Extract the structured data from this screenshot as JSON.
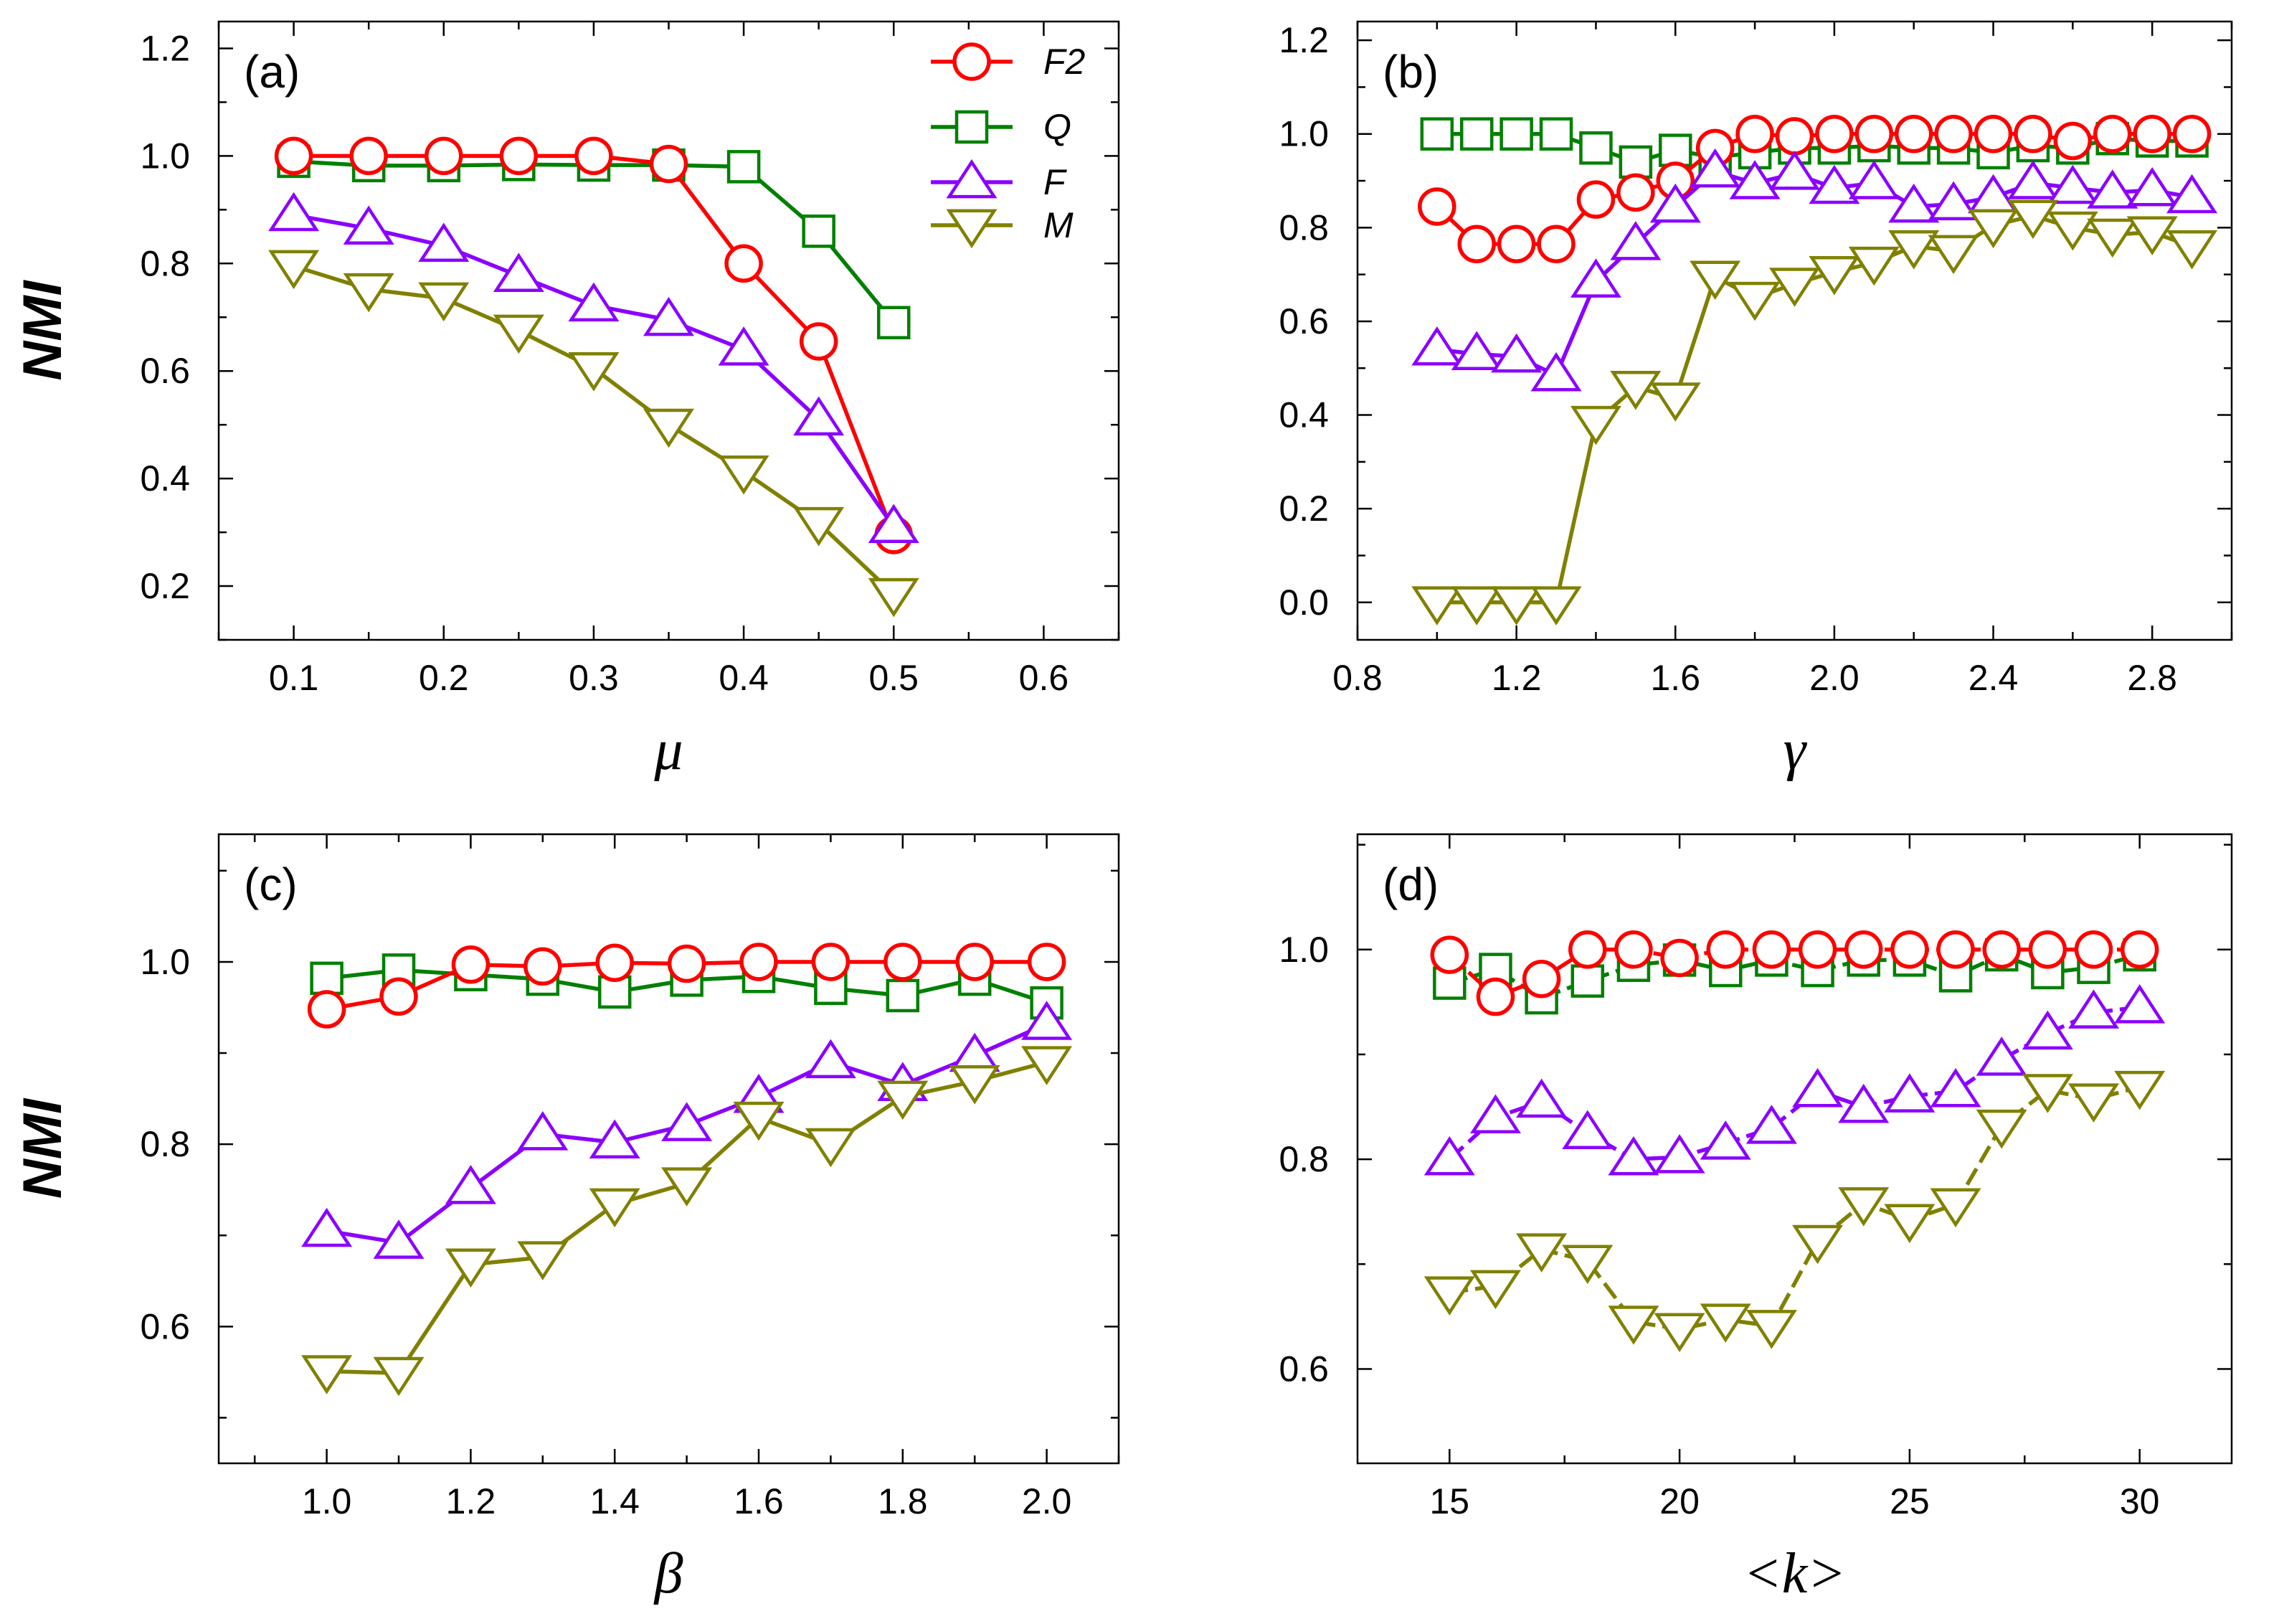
{
  "colors": {
    "F2": "#ff0000",
    "Q": "#008000",
    "F": "#8b00ff",
    "M": "#808000"
  },
  "legend": [
    {
      "key": "F2",
      "label": "F2"
    },
    {
      "key": "Q",
      "label": "Q"
    },
    {
      "key": "F",
      "label": "F"
    },
    {
      "key": "M",
      "label": "M"
    }
  ],
  "chart_data": [
    {
      "type": "line",
      "panel_label": "(a)",
      "xlabel": "μ",
      "ylabel": "NMI",
      "xlim": [
        0.05,
        0.65
      ],
      "ylim": [
        0.1,
        1.25
      ],
      "xticks": [
        0.1,
        0.2,
        0.3,
        0.4,
        0.5,
        0.6
      ],
      "xticklabels": [
        "0.1",
        "0.2",
        "0.3",
        "0.4",
        "0.5",
        "0.6"
      ],
      "yticks": [
        0.2,
        0.4,
        0.6,
        0.8,
        1.0,
        1.2
      ],
      "yticklabels": [
        "0.2",
        "0.4",
        "0.6",
        "0.8",
        "1.0",
        "1.2"
      ],
      "dashed": false,
      "x": [
        0.1,
        0.15,
        0.2,
        0.25,
        0.3,
        0.35,
        0.4,
        0.45,
        0.5
      ],
      "series": [
        {
          "name": "F2",
          "values": [
            1.0,
            1.0,
            1.0,
            1.0,
            1.0,
            0.985,
            0.8,
            0.655,
            0.295
          ]
        },
        {
          "name": "Q",
          "values": [
            0.99,
            0.982,
            0.982,
            0.984,
            0.983,
            0.983,
            0.98,
            0.86,
            0.69
          ]
        },
        {
          "name": "F",
          "values": [
            0.89,
            0.865,
            0.833,
            0.777,
            0.722,
            0.695,
            0.64,
            0.51,
            0.31
          ]
        },
        {
          "name": "M",
          "values": [
            0.795,
            0.752,
            0.735,
            0.675,
            0.605,
            0.5,
            0.413,
            0.317,
            0.185
          ]
        }
      ]
    },
    {
      "type": "line",
      "panel_label": "(b)",
      "xlabel": "γ",
      "ylabel": "",
      "xlim": [
        0.8,
        3.0
      ],
      "ylim": [
        -0.08,
        1.24
      ],
      "xticks": [
        0.8,
        1.2,
        1.6,
        2.0,
        2.4,
        2.8
      ],
      "xticklabels": [
        "0.8",
        "1.2",
        "1.6",
        "2.0",
        "2.4",
        "2.8"
      ],
      "yticks": [
        0.0,
        0.2,
        0.4,
        0.6,
        0.8,
        1.0,
        1.2
      ],
      "yticklabels": [
        "0.0",
        "0.2",
        "0.4",
        "0.6",
        "0.8",
        "1.0",
        "1.2"
      ],
      "dashed": false,
      "x": [
        1.0,
        1.1,
        1.2,
        1.3,
        1.4,
        1.5,
        1.6,
        1.7,
        1.8,
        1.9,
        2.0,
        2.1,
        2.2,
        2.3,
        2.4,
        2.5,
        2.6,
        2.7,
        2.8,
        2.9
      ],
      "series": [
        {
          "name": "F2",
          "values": [
            0.845,
            0.765,
            0.765,
            0.765,
            0.86,
            0.875,
            0.9,
            0.97,
            1.0,
            0.995,
            1.0,
            1.0,
            1.0,
            1.0,
            1.0,
            1.0,
            0.985,
            1.0,
            1.0,
            1.0
          ]
        },
        {
          "name": "Q",
          "values": [
            1.0,
            1.0,
            1.0,
            1.0,
            0.97,
            0.94,
            0.965,
            0.95,
            0.96,
            0.97,
            0.97,
            0.975,
            0.97,
            0.97,
            0.96,
            0.975,
            0.97,
            0.99,
            0.985,
            0.985
          ]
        },
        {
          "name": "F",
          "values": [
            0.54,
            0.53,
            0.525,
            0.485,
            0.685,
            0.765,
            0.845,
            0.92,
            0.895,
            0.915,
            0.885,
            0.895,
            0.845,
            0.85,
            0.865,
            0.895,
            0.885,
            0.875,
            0.88,
            0.865
          ]
        },
        {
          "name": "M",
          "values": [
            0.0,
            0.0,
            0.0,
            0.0,
            0.385,
            0.46,
            0.435,
            0.695,
            0.65,
            0.68,
            0.705,
            0.725,
            0.76,
            0.75,
            0.805,
            0.825,
            0.8,
            0.785,
            0.79,
            0.76
          ]
        }
      ]
    },
    {
      "type": "line",
      "panel_label": "(c)",
      "xlabel": "β",
      "ylabel": "NMI",
      "xlim": [
        0.85,
        2.1
      ],
      "ylim": [
        0.45,
        1.14
      ],
      "xticks": [
        1.0,
        1.2,
        1.4,
        1.6,
        1.8,
        2.0
      ],
      "xticklabels": [
        "1.0",
        "1.2",
        "1.4",
        "1.6",
        "1.8",
        "2.0"
      ],
      "yticks": [
        0.6,
        0.8,
        1.0
      ],
      "yticklabels": [
        "0.6",
        "0.8",
        "1.0"
      ],
      "dashed": false,
      "x": [
        1.0,
        1.1,
        1.2,
        1.3,
        1.4,
        1.5,
        1.6,
        1.7,
        1.8,
        1.9,
        2.0
      ],
      "series": [
        {
          "name": "F2",
          "values": [
            0.948,
            0.962,
            0.997,
            0.995,
            0.999,
            0.998,
            1.0,
            1.0,
            1.0,
            1.0,
            1.0
          ]
        },
        {
          "name": "Q",
          "values": [
            0.982,
            0.991,
            0.986,
            0.981,
            0.967,
            0.98,
            0.984,
            0.971,
            0.963,
            0.981,
            0.955
          ]
        },
        {
          "name": "F",
          "values": [
            0.705,
            0.692,
            0.752,
            0.811,
            0.802,
            0.821,
            0.852,
            0.89,
            0.865,
            0.897,
            0.932
          ]
        },
        {
          "name": "M",
          "values": [
            0.551,
            0.549,
            0.668,
            0.676,
            0.734,
            0.757,
            0.829,
            0.8,
            0.852,
            0.869,
            0.89
          ]
        }
      ]
    },
    {
      "type": "line",
      "panel_label": "(d)",
      "xlabel": "<k>",
      "ylabel": "",
      "xlim": [
        13,
        32
      ],
      "ylim": [
        0.51,
        1.11
      ],
      "xticks": [
        15,
        20,
        25,
        30
      ],
      "xticklabels": [
        "15",
        "20",
        "25",
        "30"
      ],
      "yticks": [
        0.6,
        0.8,
        1.0
      ],
      "yticklabels": [
        "0.6",
        "0.8",
        "1.0"
      ],
      "dashed": true,
      "x": [
        15,
        16,
        17,
        18,
        19,
        20,
        21,
        22,
        23,
        24,
        25,
        26,
        27,
        28,
        29,
        30
      ],
      "series": [
        {
          "name": "F2",
          "values": [
            0.995,
            0.955,
            0.972,
            1.0,
            1.0,
            0.992,
            1.0,
            1.0,
            1.0,
            1.0,
            1.0,
            1.0,
            1.0,
            1.0,
            1.0,
            1.0
          ]
        },
        {
          "name": "Q",
          "values": [
            0.968,
            0.981,
            0.954,
            0.97,
            0.985,
            0.99,
            0.98,
            0.99,
            0.98,
            0.99,
            0.99,
            0.975,
            0.995,
            0.978,
            0.983,
            0.995
          ]
        },
        {
          "name": "F",
          "values": [
            0.8,
            0.84,
            0.855,
            0.825,
            0.8,
            0.802,
            0.815,
            0.83,
            0.865,
            0.85,
            0.86,
            0.865,
            0.895,
            0.92,
            0.94,
            0.945
          ]
        },
        {
          "name": "M",
          "values": [
            0.673,
            0.679,
            0.714,
            0.703,
            0.645,
            0.638,
            0.647,
            0.641,
            0.722,
            0.758,
            0.742,
            0.757,
            0.832,
            0.866,
            0.857,
            0.869
          ]
        }
      ]
    }
  ]
}
